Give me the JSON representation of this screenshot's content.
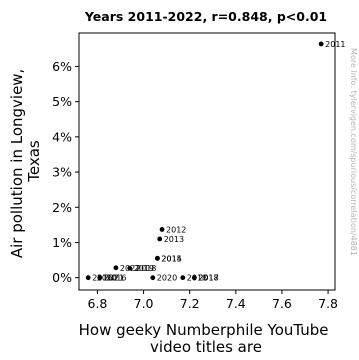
{
  "chart_data": {
    "type": "scatter",
    "title": "Years 2011-2022, r=0.848, p<0.01",
    "xlabel": "How geeky Numberphile YouTube video titles are",
    "ylabel": "Air pollution in Longview, Texas",
    "xlim": [
      6.72,
      7.83
    ],
    "ylim": [
      -0.35,
      6.95
    ],
    "xticks": [
      "6.8",
      "7.0",
      "7.2",
      "7.4",
      "7.6",
      "7.8"
    ],
    "yticks": [
      "0%",
      "1%",
      "2%",
      "3%",
      "4%",
      "5%",
      "6%"
    ],
    "grid": false,
    "series_color": "#000000",
    "points": [
      {
        "label": "2011",
        "x": 7.77,
        "y": 6.64
      },
      {
        "label": "2012",
        "x": 7.08,
        "y": 1.37
      },
      {
        "label": "2013",
        "x": 7.07,
        "y": 1.1
      },
      {
        "label": "2014",
        "x": 7.06,
        "y": 0.55
      },
      {
        "label": "2015",
        "x": 7.06,
        "y": 0.55
      },
      {
        "label": "2016",
        "x": 6.76,
        "y": 0.0
      },
      {
        "label": "2017",
        "x": 7.22,
        "y": 0.0
      },
      {
        "label": "2018",
        "x": 7.17,
        "y": 0.0
      },
      {
        "label": "2019",
        "x": 6.94,
        "y": 0.27
      },
      {
        "label": "2020",
        "x": 7.04,
        "y": 0.0
      },
      {
        "label": "2021",
        "x": 6.81,
        "y": 0.0
      },
      {
        "label": "2022",
        "x": 6.88,
        "y": 0.28
      }
    ],
    "annotations": [
      "2010",
      "2018",
      "2016",
      "2018"
    ]
  },
  "watermark": "More info: tylervigen.com/spurious/correlation/4881"
}
